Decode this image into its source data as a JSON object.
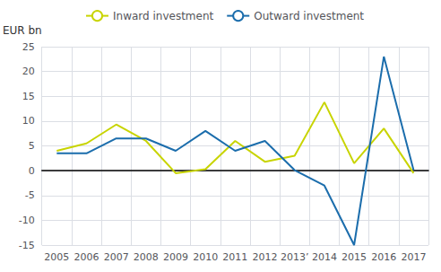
{
  "chart_data": {
    "type": "line",
    "ylabel": "EUR bn",
    "categories": [
      "2005",
      "2006",
      "2007",
      "2008",
      "2009",
      "2010",
      "2011",
      "2012",
      "2013’",
      "2014",
      "2015",
      "2016",
      "2017"
    ],
    "series": [
      {
        "name": "Inward investment",
        "color": "#c8d400",
        "values": [
          4.0,
          5.5,
          9.3,
          6.0,
          -0.5,
          0.3,
          6.0,
          1.8,
          3.0,
          13.8,
          1.5,
          8.5,
          -0.5
        ]
      },
      {
        "name": "Outward investment",
        "color": "#1b6dac",
        "values": [
          3.5,
          3.5,
          6.5,
          6.5,
          4.0,
          8.0,
          4.0,
          6.0,
          0.1,
          -3.0,
          -15.0,
          23.0,
          0.1
        ]
      }
    ],
    "ylim": [
      -15,
      25
    ],
    "yticks": [
      -15,
      -10,
      -5,
      0,
      5,
      10,
      15,
      20,
      25
    ],
    "grid": true,
    "legend": "upper left"
  }
}
